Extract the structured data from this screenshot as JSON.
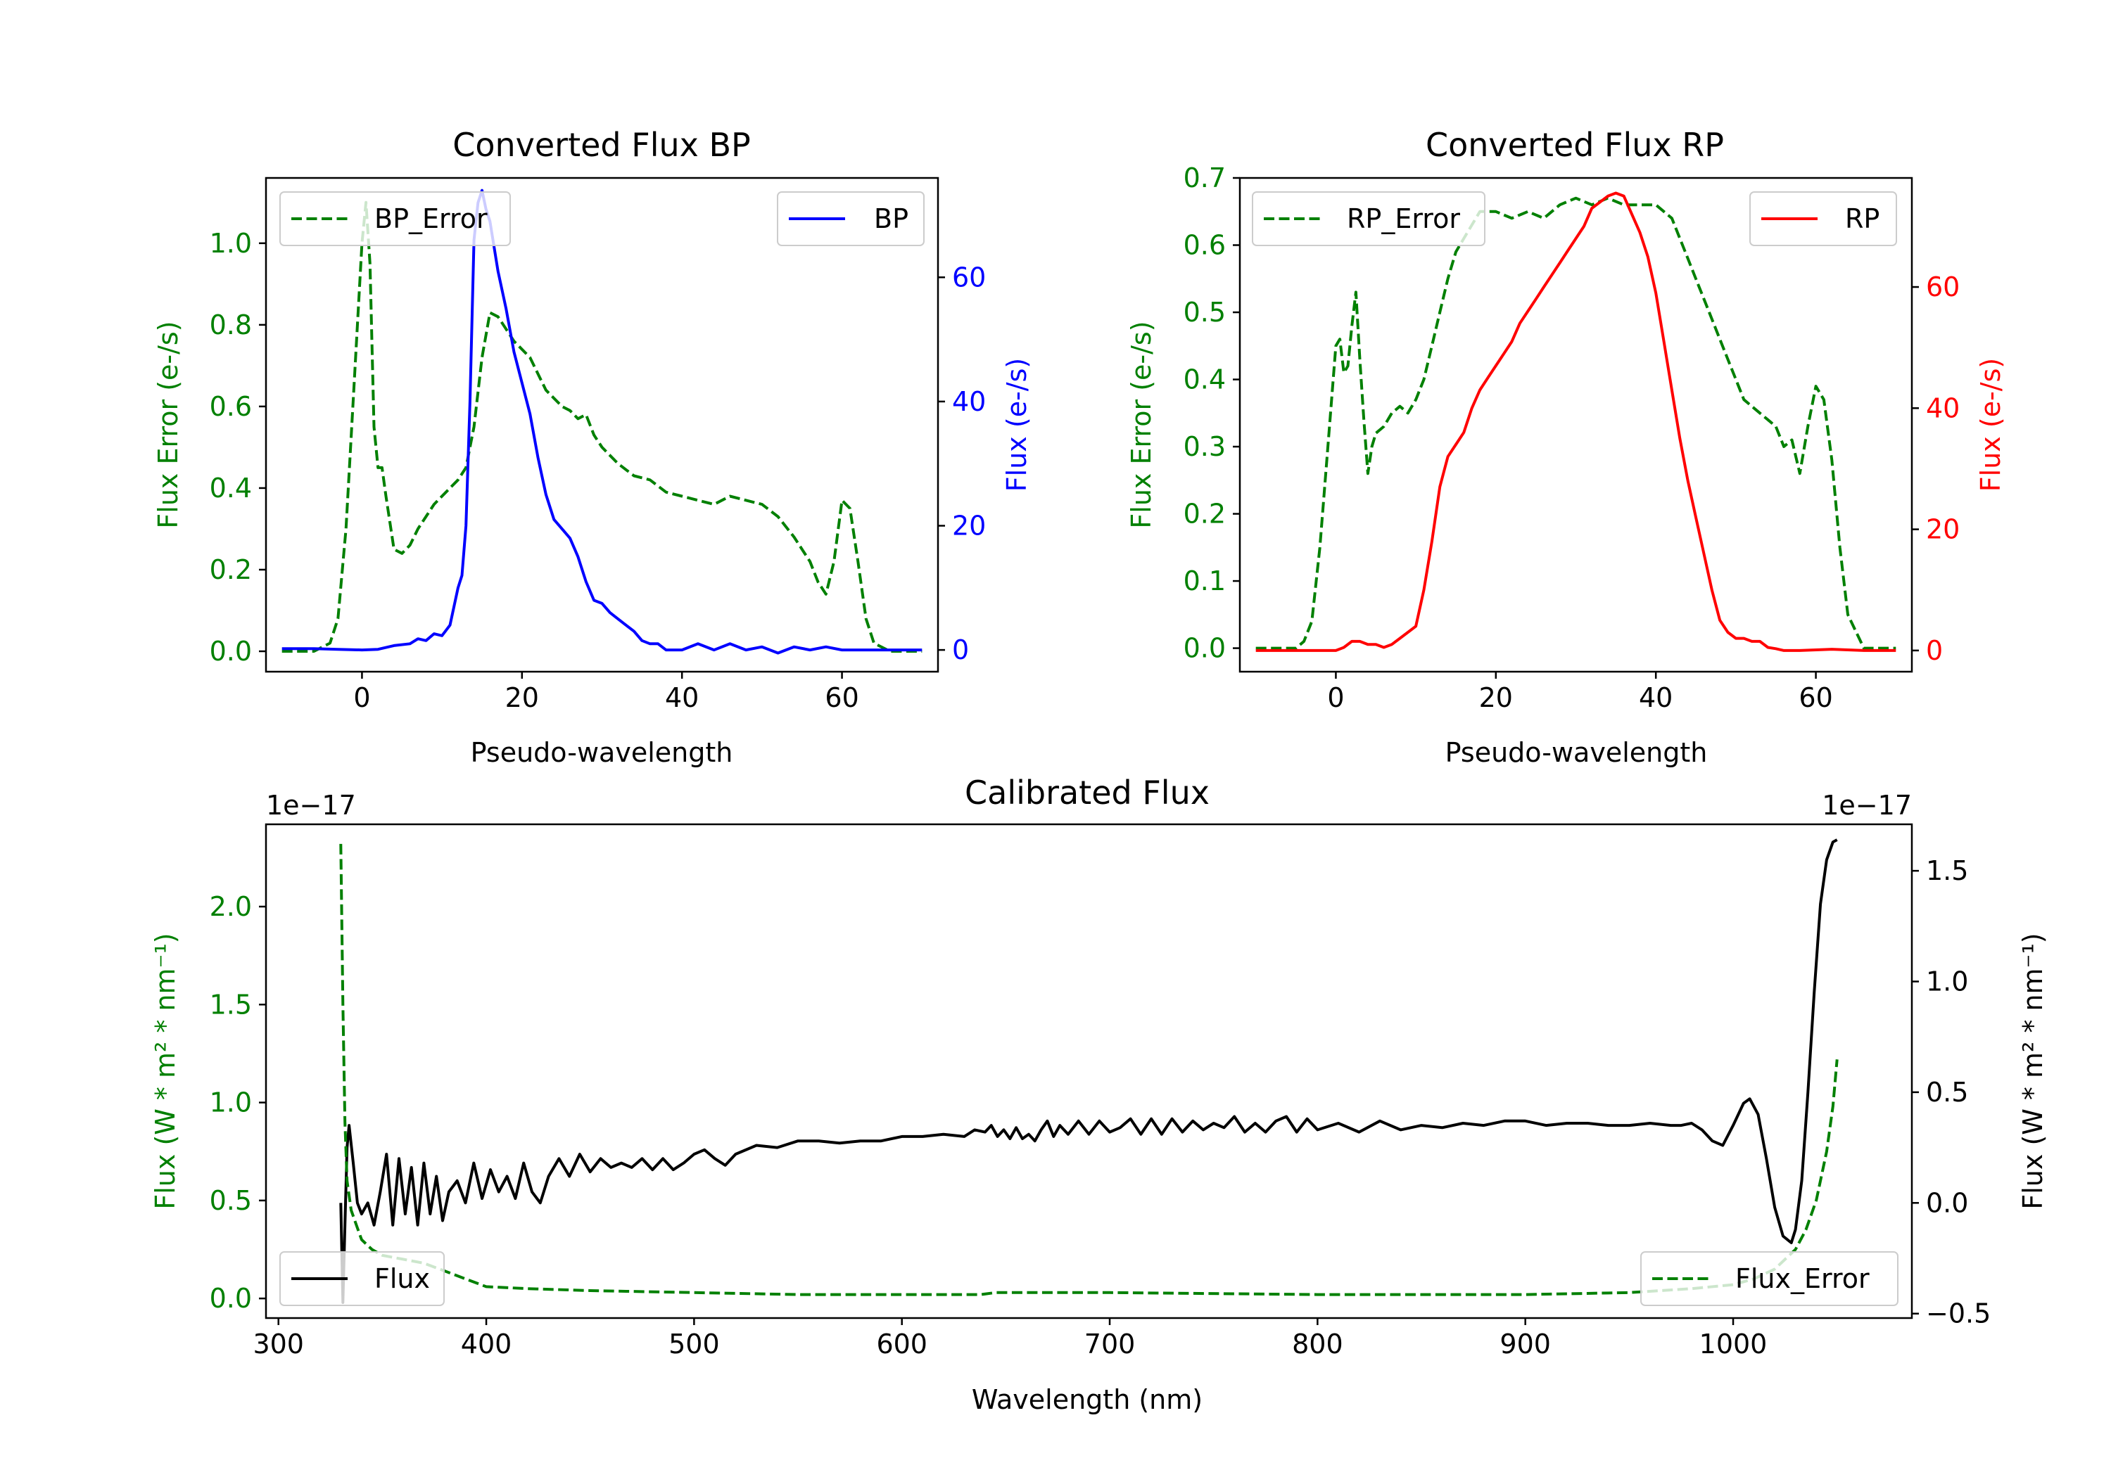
{
  "figure": {
    "bp_title": "Converted Flux BP",
    "rp_title": "Converted Flux RP",
    "cal_title": "Calibrated Flux"
  },
  "colors": {
    "error": "#008000",
    "bp": "#0000ff",
    "rp": "#ff0000",
    "flux": "#000000",
    "axis": "#000000"
  },
  "chart_data": [
    {
      "id": "bp",
      "type": "line",
      "title": "Converted Flux BP",
      "xlabel": "Pseudo-wavelength",
      "ylabel_left": "Flux Error (e-/s)",
      "ylabel_right": "Flux (e-/s)",
      "xlim": [
        -12,
        72
      ],
      "ylim_left": [
        -0.05,
        1.16
      ],
      "ylim_right": [
        -3.5,
        76
      ],
      "xticks": [
        0,
        20,
        40,
        60
      ],
      "yticks_left": [
        0.0,
        0.2,
        0.4,
        0.6,
        0.8,
        1.0
      ],
      "yticks_left_labels": [
        "0.0",
        "0.2",
        "0.4",
        "0.6",
        "0.8",
        "1.0"
      ],
      "yticks_right": [
        0,
        20,
        40,
        60
      ],
      "yticks_right_labels": [
        "0",
        "20",
        "40",
        "60"
      ],
      "legend_left": "upper left",
      "legend_right": "upper right",
      "series": [
        {
          "name": "BP_Error",
          "axis": "left",
          "style": "dashed",
          "color": "#008000",
          "x": [
            -10,
            -6,
            -4,
            -3,
            -2,
            -1,
            0,
            0.5,
            1,
            1.5,
            2,
            2.5,
            3,
            4,
            5,
            6,
            7,
            8,
            9,
            10,
            11,
            12,
            13,
            14,
            15,
            16,
            17,
            18,
            19,
            20,
            21,
            22,
            23,
            24,
            25,
            26,
            27,
            28,
            29,
            30,
            32,
            34,
            36,
            38,
            40,
            42,
            44,
            46,
            48,
            50,
            52,
            54,
            56,
            57,
            58,
            59,
            60,
            61,
            62,
            63,
            64,
            66,
            70
          ],
          "y": [
            0.0,
            0.0,
            0.02,
            0.08,
            0.3,
            0.65,
            1.0,
            1.1,
            0.95,
            0.55,
            0.45,
            0.45,
            0.38,
            0.25,
            0.24,
            0.26,
            0.3,
            0.33,
            0.36,
            0.38,
            0.4,
            0.42,
            0.45,
            0.55,
            0.72,
            0.83,
            0.82,
            0.79,
            0.76,
            0.74,
            0.72,
            0.68,
            0.64,
            0.62,
            0.6,
            0.59,
            0.57,
            0.58,
            0.53,
            0.5,
            0.46,
            0.43,
            0.42,
            0.39,
            0.38,
            0.37,
            0.36,
            0.38,
            0.37,
            0.36,
            0.33,
            0.28,
            0.22,
            0.17,
            0.14,
            0.22,
            0.37,
            0.35,
            0.22,
            0.08,
            0.02,
            0.0,
            0.0
          ]
        },
        {
          "name": "BP",
          "axis": "right",
          "style": "solid",
          "color": "#0000ff",
          "x": [
            -10,
            -6,
            -3,
            0,
            2,
            4,
            6,
            7,
            8,
            9,
            10,
            11,
            12,
            12.5,
            13,
            13.5,
            14,
            14.5,
            15,
            15.5,
            16,
            17,
            18,
            19,
            20,
            21,
            22,
            23,
            24,
            25,
            26,
            27,
            28,
            29,
            30,
            31,
            32,
            33,
            34,
            35,
            36,
            37,
            38,
            40,
            42,
            44,
            46,
            48,
            50,
            52,
            54,
            56,
            58,
            60,
            64,
            70
          ],
          "y": [
            0.2,
            0.2,
            0.1,
            0.0,
            0.1,
            0.7,
            1.0,
            1.8,
            1.5,
            2.6,
            2.3,
            4.0,
            10.0,
            12.0,
            20.0,
            40.0,
            66.0,
            72.0,
            74.0,
            71.0,
            69.0,
            61.0,
            55.0,
            48.0,
            43.0,
            38.0,
            31.0,
            25.0,
            21.0,
            19.5,
            18.0,
            15.0,
            11.0,
            8.0,
            7.5,
            6.0,
            5.0,
            4.0,
            3.0,
            1.5,
            1.0,
            1.0,
            0.0,
            0.0,
            1.0,
            0.0,
            1.0,
            0.0,
            0.5,
            -0.5,
            0.5,
            0.0,
            0.5,
            0.0,
            0.0,
            0.0
          ]
        }
      ]
    },
    {
      "id": "rp",
      "type": "line",
      "title": "Converted Flux RP",
      "xlabel": "Pseudo-wavelength",
      "ylabel_left": "Flux Error (e-/s)",
      "ylabel_right": "Flux (e-/s)",
      "xlim": [
        -12,
        72
      ],
      "ylim_left": [
        -0.035,
        0.7
      ],
      "ylim_right": [
        -3.5,
        78
      ],
      "xticks": [
        0,
        20,
        40,
        60
      ],
      "yticks_left": [
        0.0,
        0.1,
        0.2,
        0.3,
        0.4,
        0.5,
        0.6,
        0.7
      ],
      "yticks_left_labels": [
        "0.0",
        "0.1",
        "0.2",
        "0.3",
        "0.4",
        "0.5",
        "0.6",
        "0.7"
      ],
      "yticks_right": [
        0,
        20,
        40,
        60
      ],
      "yticks_right_labels": [
        "0",
        "20",
        "40",
        "60"
      ],
      "legend_left": "upper left",
      "legend_right": "upper right",
      "series": [
        {
          "name": "RP_Error",
          "axis": "left",
          "style": "dashed",
          "color": "#008000",
          "x": [
            -10,
            -5,
            -4,
            -3,
            -2,
            -1,
            0,
            0.5,
            1,
            1.5,
            2,
            2.5,
            3,
            3.5,
            4,
            4.5,
            5,
            6,
            7,
            8,
            9,
            10,
            11,
            12,
            13,
            14,
            15,
            16,
            17,
            18,
            19,
            20,
            22,
            24,
            26,
            28,
            30,
            32,
            34,
            36,
            38,
            40,
            41,
            42,
            43,
            44,
            45,
            46,
            47,
            48,
            49,
            50,
            51,
            52,
            53,
            54,
            55,
            56,
            57,
            58,
            59,
            60,
            61,
            62,
            63,
            64,
            66,
            70
          ],
          "y": [
            0.0,
            0.0,
            0.01,
            0.04,
            0.15,
            0.3,
            0.45,
            0.46,
            0.41,
            0.42,
            0.48,
            0.53,
            0.43,
            0.34,
            0.26,
            0.3,
            0.32,
            0.33,
            0.35,
            0.36,
            0.35,
            0.37,
            0.4,
            0.45,
            0.5,
            0.55,
            0.59,
            0.61,
            0.63,
            0.65,
            0.65,
            0.65,
            0.64,
            0.65,
            0.64,
            0.66,
            0.67,
            0.66,
            0.67,
            0.66,
            0.66,
            0.66,
            0.65,
            0.64,
            0.61,
            0.58,
            0.55,
            0.52,
            0.49,
            0.46,
            0.43,
            0.4,
            0.37,
            0.36,
            0.35,
            0.34,
            0.33,
            0.3,
            0.31,
            0.26,
            0.33,
            0.39,
            0.37,
            0.28,
            0.15,
            0.05,
            0.0,
            0.0
          ]
        },
        {
          "name": "RP",
          "axis": "right",
          "style": "solid",
          "color": "#ff0000",
          "x": [
            -10,
            -3,
            0,
            1,
            2,
            3,
            4,
            5,
            6,
            7,
            8,
            9,
            10,
            11,
            12,
            13,
            14,
            15,
            16,
            17,
            18,
            19,
            20,
            21,
            22,
            23,
            24,
            25,
            26,
            27,
            28,
            29,
            30,
            31,
            32,
            33,
            34,
            35,
            36,
            37,
            38,
            39,
            40,
            41,
            42,
            43,
            44,
            45,
            46,
            47,
            48,
            49,
            50,
            51,
            52,
            53,
            54,
            55,
            56,
            58,
            62,
            66,
            70
          ],
          "y": [
            0.0,
            0.0,
            0.0,
            0.5,
            1.5,
            1.5,
            1.0,
            1.0,
            0.5,
            1.0,
            2.0,
            3.0,
            4.0,
            10.0,
            18.0,
            27.0,
            32.0,
            34.0,
            36.0,
            40.0,
            43.0,
            45.0,
            47.0,
            49.0,
            51.0,
            54.0,
            56.0,
            58.0,
            60.0,
            62.0,
            64.0,
            66.0,
            68.0,
            70.0,
            73.0,
            74.0,
            75.0,
            75.5,
            75.0,
            72.0,
            69.0,
            65.0,
            59.0,
            51.0,
            43.0,
            35.0,
            28.0,
            22.0,
            16.0,
            10.0,
            5.0,
            3.0,
            2.0,
            2.0,
            1.5,
            1.5,
            0.5,
            0.3,
            0.0,
            0.0,
            0.2,
            0.0,
            0.0
          ]
        }
      ]
    },
    {
      "id": "calibrated",
      "type": "line",
      "title": "Calibrated Flux",
      "xlabel": "Wavelength (nm)",
      "ylabel_left": "Flux (W * m² * nm⁻¹)",
      "ylabel_right": "Flux (W * m² * nm⁻¹)",
      "offset_left": "1e−17",
      "offset_right": "1e−17",
      "xlim": [
        294,
        1086
      ],
      "ylim_left": [
        -0.1,
        2.42
      ],
      "ylim_right": [
        -0.52,
        1.71
      ],
      "xticks": [
        300,
        400,
        500,
        600,
        700,
        800,
        900,
        1000
      ],
      "yticks_left": [
        0.0,
        0.5,
        1.0,
        1.5,
        2.0
      ],
      "yticks_left_labels": [
        "0.0",
        "0.5",
        "1.0",
        "1.5",
        "2.0"
      ],
      "yticks_right": [
        -0.5,
        0.0,
        0.5,
        1.0,
        1.5
      ],
      "yticks_right_labels": [
        "−0.5",
        "0.0",
        "0.5",
        "1.0",
        "1.5"
      ],
      "legend_left": "lower left",
      "legend_right": "lower right",
      "series": [
        {
          "name": "Flux",
          "axis": "right",
          "style": "solid",
          "color": "#000000",
          "x": [
            330,
            331,
            332,
            333,
            334,
            336,
            338,
            340,
            343,
            346,
            349,
            352,
            355,
            358,
            361,
            364,
            367,
            370,
            373,
            376,
            379,
            382,
            386,
            390,
            394,
            398,
            402,
            406,
            410,
            414,
            418,
            422,
            426,
            430,
            435,
            440,
            445,
            450,
            455,
            460,
            465,
            470,
            475,
            480,
            485,
            490,
            495,
            500,
            505,
            510,
            515,
            520,
            530,
            540,
            550,
            560,
            570,
            580,
            590,
            600,
            610,
            620,
            630,
            635,
            640,
            643,
            646,
            649,
            652,
            655,
            658,
            661,
            664,
            667,
            670,
            673,
            676,
            680,
            685,
            690,
            695,
            700,
            705,
            710,
            715,
            720,
            725,
            730,
            735,
            740,
            745,
            750,
            755,
            760,
            765,
            770,
            775,
            780,
            785,
            790,
            795,
            800,
            810,
            820,
            830,
            840,
            850,
            860,
            870,
            880,
            890,
            900,
            910,
            920,
            930,
            940,
            950,
            960,
            970,
            975,
            980,
            985,
            990,
            995,
            1000,
            1005,
            1008,
            1012,
            1016,
            1020,
            1024,
            1028,
            1030,
            1033,
            1036,
            1039,
            1042,
            1045,
            1048,
            1050
          ],
          "y": [
            0.0,
            -0.45,
            -0.1,
            0.25,
            0.35,
            0.18,
            0.0,
            -0.05,
            0.0,
            -0.1,
            0.05,
            0.22,
            -0.1,
            0.2,
            -0.05,
            0.16,
            -0.1,
            0.18,
            -0.05,
            0.12,
            -0.08,
            0.05,
            0.1,
            0.0,
            0.18,
            0.02,
            0.15,
            0.05,
            0.12,
            0.02,
            0.18,
            0.05,
            0.0,
            0.12,
            0.2,
            0.12,
            0.22,
            0.14,
            0.2,
            0.16,
            0.18,
            0.16,
            0.2,
            0.15,
            0.2,
            0.15,
            0.18,
            0.22,
            0.24,
            0.2,
            0.17,
            0.22,
            0.26,
            0.25,
            0.28,
            0.28,
            0.27,
            0.28,
            0.28,
            0.3,
            0.3,
            0.31,
            0.3,
            0.33,
            0.32,
            0.35,
            0.3,
            0.33,
            0.29,
            0.34,
            0.29,
            0.31,
            0.28,
            0.33,
            0.37,
            0.3,
            0.35,
            0.31,
            0.37,
            0.31,
            0.37,
            0.32,
            0.34,
            0.38,
            0.31,
            0.38,
            0.31,
            0.38,
            0.32,
            0.37,
            0.33,
            0.36,
            0.34,
            0.39,
            0.32,
            0.36,
            0.32,
            0.37,
            0.39,
            0.32,
            0.38,
            0.33,
            0.36,
            0.32,
            0.37,
            0.33,
            0.35,
            0.34,
            0.36,
            0.35,
            0.37,
            0.37,
            0.35,
            0.36,
            0.36,
            0.35,
            0.35,
            0.36,
            0.35,
            0.35,
            0.36,
            0.33,
            0.28,
            0.26,
            0.35,
            0.45,
            0.47,
            0.4,
            0.2,
            -0.02,
            -0.15,
            -0.18,
            -0.12,
            0.1,
            0.5,
            0.95,
            1.35,
            1.55,
            1.63,
            1.64
          ]
        },
        {
          "name": "Flux_Error",
          "axis": "left",
          "style": "dashed",
          "color": "#008000",
          "x": [
            330,
            331,
            332,
            333,
            335,
            338,
            340,
            345,
            350,
            360,
            370,
            380,
            390,
            400,
            420,
            450,
            500,
            550,
            600,
            630,
            638,
            645,
            700,
            800,
            900,
            950,
            980,
            1000,
            1010,
            1020,
            1030,
            1035,
            1040,
            1045,
            1048,
            1050
          ],
          "y": [
            2.32,
            1.5,
            0.9,
            0.6,
            0.45,
            0.36,
            0.3,
            0.25,
            0.22,
            0.2,
            0.18,
            0.14,
            0.1,
            0.06,
            0.05,
            0.04,
            0.03,
            0.02,
            0.02,
            0.02,
            0.02,
            0.03,
            0.03,
            0.02,
            0.02,
            0.03,
            0.05,
            0.07,
            0.1,
            0.15,
            0.25,
            0.35,
            0.5,
            0.75,
            0.98,
            1.22
          ]
        }
      ]
    }
  ]
}
